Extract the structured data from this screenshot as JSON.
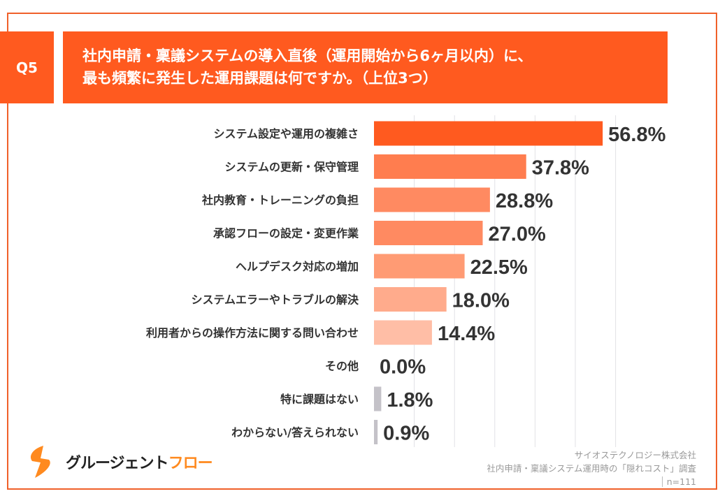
{
  "question_no": "Q5",
  "title_lines": [
    "社内申請・稟議システムの導入直後（運用開始から6ヶ月以内）に、",
    "最も頻繁に発生した運用課題は何ですか。（上位3つ）"
  ],
  "chart_data": {
    "type": "bar",
    "orientation": "horizontal",
    "categories": [
      "システム設定や運用の複雑さ",
      "システムの更新・保守管理",
      "社内教育・トレーニングの負担",
      "承認フローの設定・変更作業",
      "ヘルプデスク対応の増加",
      "システムエラーやトラブルの解決",
      "利用者からの操作方法に関する問い合わせ",
      "その他",
      "特に課題はない",
      "わからない/答えられない"
    ],
    "values": [
      56.8,
      37.8,
      28.8,
      27.0,
      22.5,
      18.0,
      14.4,
      0.0,
      1.8,
      0.9
    ],
    "data_labels": [
      "56.8%",
      "37.8%",
      "28.8%",
      "27.0%",
      "22.5%",
      "18.0%",
      "14.4%",
      "0.0%",
      "1.8%",
      "0.9%"
    ],
    "colors": [
      "#ff5a1f",
      "#ff7d4f",
      "#ff8a61",
      "#ff8a61",
      "#ff9b74",
      "#ffab8c",
      "#ffbea6",
      "#c4c2c8",
      "#c4c2c8",
      "#c4c2c8"
    ],
    "xlim": [
      0,
      70
    ],
    "grid": true,
    "unit": "%"
  },
  "logo": {
    "text_main": "グルージェント",
    "text_accent": "フロー",
    "colors": {
      "main": "#222222",
      "accent": "#ff8a1f"
    }
  },
  "credits": {
    "company": "サイオステクノロジー株式会社",
    "survey": "社内申請・稟議システム運用時の「隠れコスト」調査",
    "sample": "n=111"
  }
}
